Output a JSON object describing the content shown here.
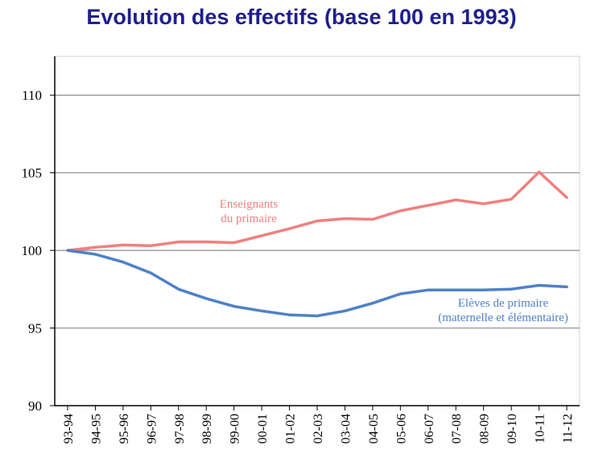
{
  "chart_data": {
    "type": "line",
    "title": "Evolution des effectifs (base 100 en 1993)",
    "xlabel": "",
    "ylabel": "",
    "ylim": [
      90,
      112.5
    ],
    "yticks": [
      90,
      95,
      100,
      105,
      110
    ],
    "grid": true,
    "categories": [
      "93-94",
      "94-95",
      "95-96",
      "96-97",
      "97-98",
      "98-99",
      "99-00",
      "00-01",
      "01-02",
      "02-03",
      "03-04",
      "04-05",
      "05-06",
      "06-07",
      "07-08",
      "08-09",
      "09-10",
      "10-11",
      "11-12"
    ],
    "series": [
      {
        "name": "Enseignants du primaire",
        "label_lines": [
          "Enseignants",
          "du primaire"
        ],
        "color": "#f08080",
        "values": [
          100,
          100.2,
          100.35,
          100.3,
          100.55,
          100.55,
          100.5,
          100.95,
          101.4,
          101.9,
          102.05,
          102.0,
          102.55,
          102.9,
          103.25,
          103.0,
          103.3,
          105.05,
          103.4
        ]
      },
      {
        "name": "Elèves de primaire (maternelle et élémentaire)",
        "label_lines": [
          "Elèves de primaire",
          "(maternelle et élémentaire)"
        ],
        "color": "#4f81c7",
        "values": [
          100,
          99.75,
          99.25,
          98.55,
          97.5,
          96.9,
          96.4,
          96.1,
          95.85,
          95.78,
          96.1,
          96.6,
          97.2,
          97.45,
          97.45,
          97.45,
          97.5,
          97.75,
          97.65
        ]
      }
    ]
  }
}
